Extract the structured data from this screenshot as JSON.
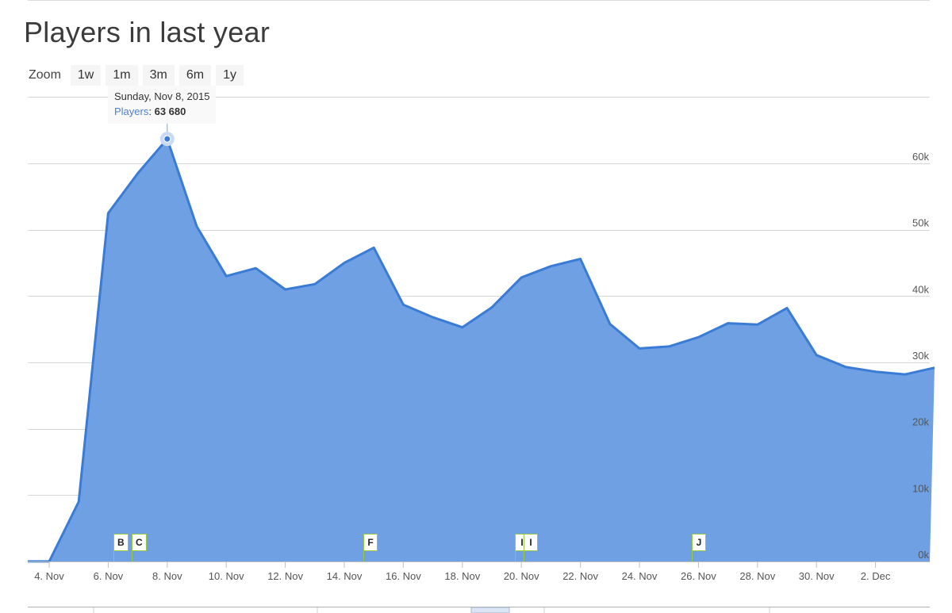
{
  "title": "Players in last year",
  "zoom": {
    "label": "Zoom",
    "buttons": [
      "1w",
      "1m",
      "3m",
      "6m",
      "1y"
    ]
  },
  "tooltip": {
    "date": "Sunday, Nov 8, 2015",
    "series_label": "Players",
    "value_text": "63 680"
  },
  "colors": {
    "area_fill": "#6ea0e3",
    "line": "#3a7bd5",
    "grid": "#d8d8d8",
    "flag_border": "#9bc73f"
  },
  "chart_data": {
    "type": "area",
    "x": [
      "2015-11-03",
      "2015-11-04",
      "2015-11-05",
      "2015-11-06",
      "2015-11-07",
      "2015-11-08",
      "2015-11-09",
      "2015-11-10",
      "2015-11-11",
      "2015-11-12",
      "2015-11-13",
      "2015-11-14",
      "2015-11-15",
      "2015-11-16",
      "2015-11-17",
      "2015-11-18",
      "2015-11-19",
      "2015-11-20",
      "2015-11-21",
      "2015-11-22",
      "2015-11-23",
      "2015-11-24",
      "2015-11-25",
      "2015-11-26",
      "2015-11-27",
      "2015-11-28",
      "2015-11-29",
      "2015-11-30",
      "2015-12-01",
      "2015-12-02",
      "2015-12-03",
      "2015-12-04"
    ],
    "series": [
      {
        "name": "Players",
        "values": [
          0,
          0,
          9000,
          52500,
          58500,
          63680,
          50500,
          43000,
          44200,
          41000,
          41800,
          45000,
          47300,
          38700,
          36800,
          35300,
          38300,
          42800,
          44500,
          45600,
          35800,
          32100,
          32400,
          33800,
          35900,
          35700,
          38200,
          31100,
          29300,
          28600,
          28200,
          29200
        ]
      }
    ],
    "x_ticks": [
      "4. Nov",
      "6. Nov",
      "8. Nov",
      "10. Nov",
      "12. Nov",
      "14. Nov",
      "16. Nov",
      "18. Nov",
      "20. Nov",
      "22. Nov",
      "24. Nov",
      "26. Nov",
      "28. Nov",
      "30. Nov",
      "2. Dec"
    ],
    "y_ticks": [
      "0k",
      "10k",
      "20k",
      "30k",
      "40k",
      "50k",
      "60k"
    ],
    "ylim": [
      0,
      70000
    ],
    "grid": true,
    "flags": [
      {
        "label": "B",
        "date": "2015-11-06"
      },
      {
        "label": "C",
        "date": "2015-11-06"
      },
      {
        "label": "F",
        "date": "2015-11-14"
      },
      {
        "label": "I",
        "date": "2015-11-19"
      },
      {
        "label": "I",
        "date": "2015-11-19"
      },
      {
        "label": "J",
        "date": "2015-11-25"
      }
    ],
    "highlighted_point": {
      "x": "2015-11-08",
      "y": 63680
    }
  }
}
